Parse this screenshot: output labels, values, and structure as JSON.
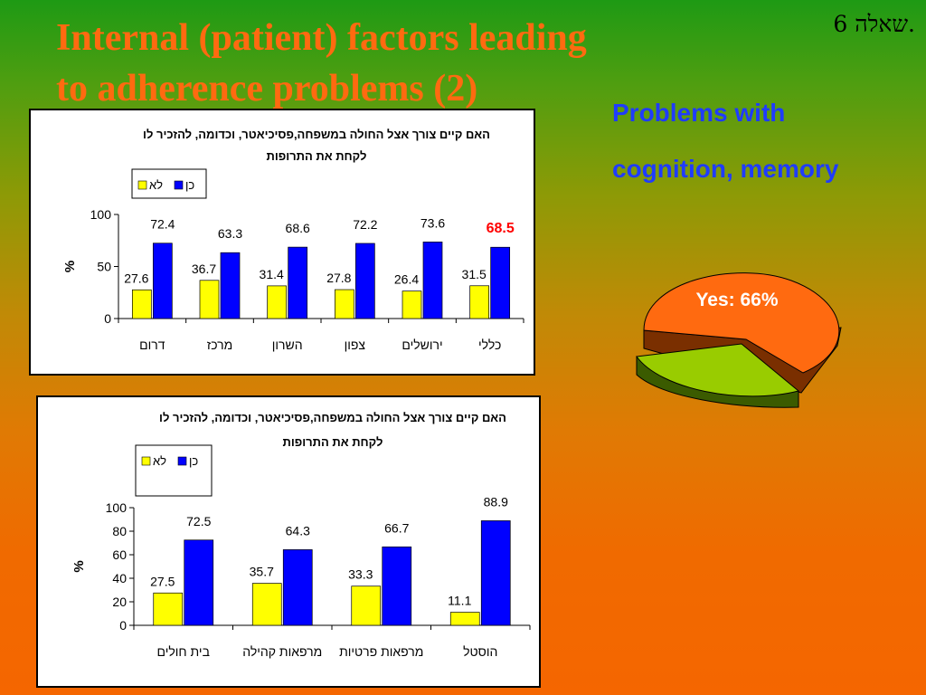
{
  "slide": {
    "title_line1": "Internal (patient) factors leading",
    "title_line2": "to adherence problems (2)",
    "question_label": "שאלה 6.",
    "callout_line1": "Problems with",
    "callout_line2": "cognition, memory"
  },
  "chart_data": [
    {
      "type": "bar",
      "title_line1": "האם קיים צורך אצל החולה במשפחה,פסיכיאטר, וכדומה, להזכיר לו",
      "title_line2": "לקחת את התרופות",
      "ylabel": "%",
      "ylim": [
        0,
        100
      ],
      "yticks": [
        0,
        50,
        100
      ],
      "categories": [
        "דרום",
        "מרכז",
        "השרון",
        "צפון",
        "ירושלים",
        "כללי"
      ],
      "series": [
        {
          "name": "לא",
          "color": "#ffff00",
          "values": [
            27.6,
            36.7,
            31.4,
            27.8,
            26.4,
            31.5
          ]
        },
        {
          "name": "כן",
          "color": "#0000ff",
          "values": [
            72.4,
            63.3,
            68.6,
            72.2,
            73.6,
            68.5
          ]
        }
      ],
      "highlight": {
        "series": 1,
        "index": 5,
        "color": "#ff0000"
      },
      "legend_position": "top-left",
      "grid": false
    },
    {
      "type": "bar",
      "title_line1": "האם קיים צורך אצל החולה במשפחה,פסיכיאטר, וכדומה, להזכיר לו",
      "title_line2": "לקחת את התרופות",
      "ylabel": "%",
      "ylim": [
        0,
        100
      ],
      "yticks": [
        0,
        20,
        40,
        60,
        80,
        100
      ],
      "categories": [
        "בית חולים",
        "מרפאות קהילה",
        "מרפאות פרטיות",
        "הוסטל"
      ],
      "series": [
        {
          "name": "לא",
          "color": "#ffff00",
          "values": [
            27.5,
            35.7,
            33.3,
            11.1
          ]
        },
        {
          "name": "כן",
          "color": "#0000ff",
          "values": [
            72.5,
            64.3,
            66.7,
            88.9
          ]
        }
      ],
      "legend_position": "top-left",
      "grid": false
    },
    {
      "type": "pie",
      "slices": [
        {
          "label": "Yes: 66%",
          "value": 66,
          "color": "#ff6a10"
        },
        {
          "label": "",
          "value": 34,
          "color": "#99cc00"
        }
      ]
    }
  ]
}
